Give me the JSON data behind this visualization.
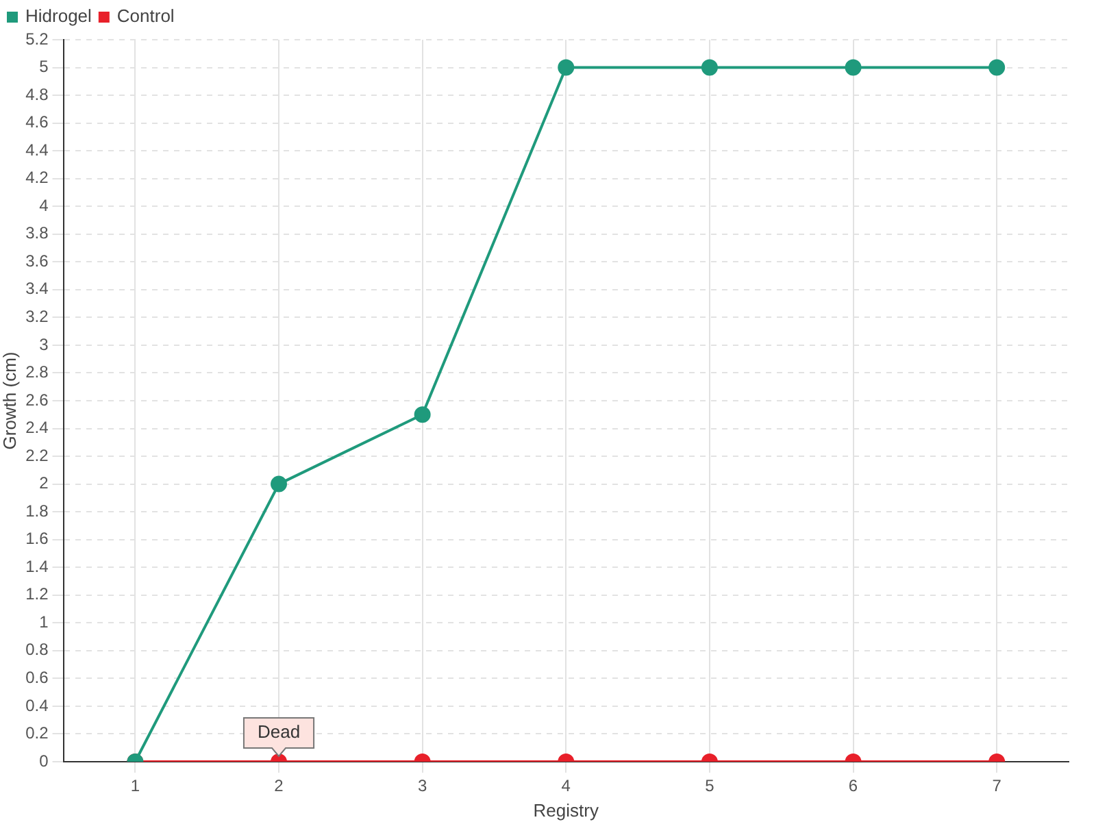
{
  "chart_data": {
    "type": "line",
    "xlabel": "Registry",
    "ylabel": "Growth (cm)",
    "categories": [
      "1",
      "2",
      "3",
      "4",
      "5",
      "6",
      "7"
    ],
    "series": [
      {
        "name": "Hidrogel",
        "color": "#1f9a7c",
        "values": [
          0,
          2,
          2.5,
          5,
          5,
          5,
          5
        ]
      },
      {
        "name": "Control",
        "color": "#e8202a",
        "values": [
          0,
          0,
          0,
          0,
          0,
          0,
          0
        ]
      }
    ],
    "ylim": [
      0,
      5.2
    ],
    "yticks": [
      0,
      0.2,
      0.4,
      0.6,
      0.8,
      1,
      1.2,
      1.4,
      1.6,
      1.8,
      2,
      2.2,
      2.4,
      2.6,
      2.8,
      3,
      3.2,
      3.4,
      3.6,
      3.8,
      4,
      4.2,
      4.4,
      4.6,
      4.8,
      5,
      5.2
    ],
    "grid": true,
    "legend": "top left",
    "marker": "circle",
    "line_style": "solid",
    "annotations": [
      {
        "text": "Dead",
        "x": "2",
        "y": 0
      }
    ]
  }
}
